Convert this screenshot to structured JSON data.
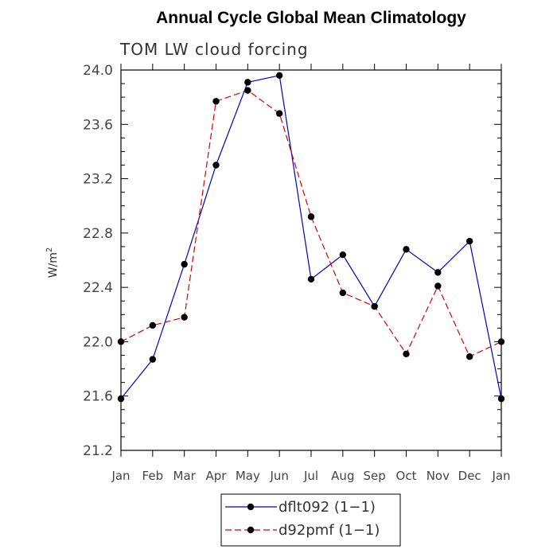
{
  "chart_data": {
    "type": "line",
    "title": "Annual Cycle Global Mean Climatology",
    "subtitle": "TOM LW cloud forcing",
    "ylabel": "W/m",
    "ylabel_superscript": "2",
    "xlabel": "",
    "categories": [
      "Jan",
      "Feb",
      "Mar",
      "Apr",
      "May",
      "Jun",
      "Jul",
      "Aug",
      "Sep",
      "Oct",
      "Nov",
      "Dec",
      "Jan"
    ],
    "ylim": [
      21.2,
      24.0
    ],
    "yticks": [
      "21.2",
      "21.6",
      "22.0",
      "22.4",
      "22.8",
      "23.2",
      "23.6",
      "24.0"
    ],
    "grid": false,
    "legend_position": "bottom",
    "series": [
      {
        "name": "dflt092 (1−1)",
        "color": "#0000cc",
        "style": "solid",
        "values": [
          21.58,
          21.87,
          22.57,
          23.3,
          23.91,
          23.96,
          22.46,
          22.64,
          22.26,
          22.68,
          22.51,
          22.74,
          21.58
        ]
      },
      {
        "name": "d92pmf (1−1)",
        "color": "#dd0000",
        "style": "dashed",
        "values": [
          22.0,
          22.12,
          22.18,
          23.77,
          23.85,
          23.68,
          22.92,
          22.36,
          22.26,
          21.91,
          22.41,
          21.89,
          22.0
        ]
      }
    ]
  }
}
